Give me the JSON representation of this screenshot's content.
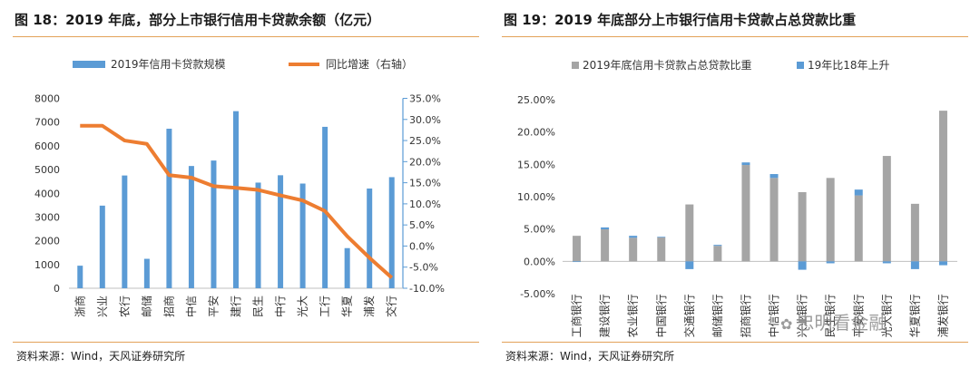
{
  "left": {
    "title": "图 18：2019 年底，部分上市银行信用卡贷款余额（亿元）",
    "source": "资料来源：Wind，天风证券研究所"
  },
  "right": {
    "title": "图 19：2019 年底部分上市银行信用卡贷款占总贷款比重",
    "source": "资料来源：Wind，天风证券研究所"
  },
  "watermark": "忠明看金融",
  "chart_data": [
    {
      "type": "bar",
      "categories": [
        "浙商",
        "兴业",
        "农行",
        "邮储",
        "招商",
        "中信",
        "平安",
        "建行",
        "民生",
        "中行",
        "光大",
        "工行",
        "华夏",
        "浦发",
        "交行"
      ],
      "series": [
        {
          "name": "2019年信用卡贷款规模",
          "type": "bar",
          "axis": "left",
          "color": "#5b9bd5",
          "values": [
            950,
            3480,
            4750,
            1240,
            6720,
            5150,
            5380,
            7460,
            4450,
            4760,
            4410,
            6800,
            1690,
            4200,
            4680
          ]
        },
        {
          "name": "同比增速（右轴）",
          "type": "line",
          "axis": "right",
          "color": "#ed7d31",
          "values": [
            28.5,
            28.5,
            25.0,
            24.2,
            16.8,
            16.2,
            14.2,
            13.8,
            13.3,
            12.0,
            10.8,
            8.3,
            2.3,
            -2.8,
            -7.5
          ]
        }
      ],
      "ylim": [
        0,
        8000
      ],
      "yticks": [
        "0",
        "1000",
        "2000",
        "3000",
        "4000",
        "5000",
        "6000",
        "7000",
        "8000"
      ],
      "y2lim": [
        -10,
        35
      ],
      "y2ticks": [
        "-10.0%",
        "-5.0%",
        "0.0%",
        "5.0%",
        "10.0%",
        "15.0%",
        "20.0%",
        "25.0%",
        "30.0%",
        "35.0%"
      ],
      "legend": "top"
    },
    {
      "type": "bar",
      "stacked": true,
      "categories": [
        "工商银行",
        "建设银行",
        "农业银行",
        "中国银行",
        "交通银行",
        "邮储银行",
        "招商银行",
        "中信银行",
        "兴业银行",
        "民生银行",
        "平安银行",
        "光大银行",
        "华夏银行",
        "浦发银行"
      ],
      "series": [
        {
          "name": "2019年底信用卡贷款占总贷款比重",
          "color": "#a5a5a5",
          "values": [
            3.95,
            4.95,
            3.65,
            3.7,
            8.8,
            2.4,
            14.9,
            12.9,
            10.7,
            12.9,
            10.2,
            16.3,
            8.9,
            23.3
          ]
        },
        {
          "name": "19年比18年上升",
          "color": "#5b9bd5",
          "values": [
            -0.1,
            0.3,
            0.3,
            0.1,
            -1.2,
            0.15,
            0.4,
            0.6,
            -1.3,
            -0.3,
            0.9,
            -0.3,
            -1.2,
            -0.6
          ]
        }
      ],
      "ylim": [
        -5,
        25
      ],
      "yticks": [
        "-5.00%",
        "0.00%",
        "5.00%",
        "10.00%",
        "15.00%",
        "20.00%",
        "25.00%"
      ],
      "legend": "top"
    }
  ]
}
